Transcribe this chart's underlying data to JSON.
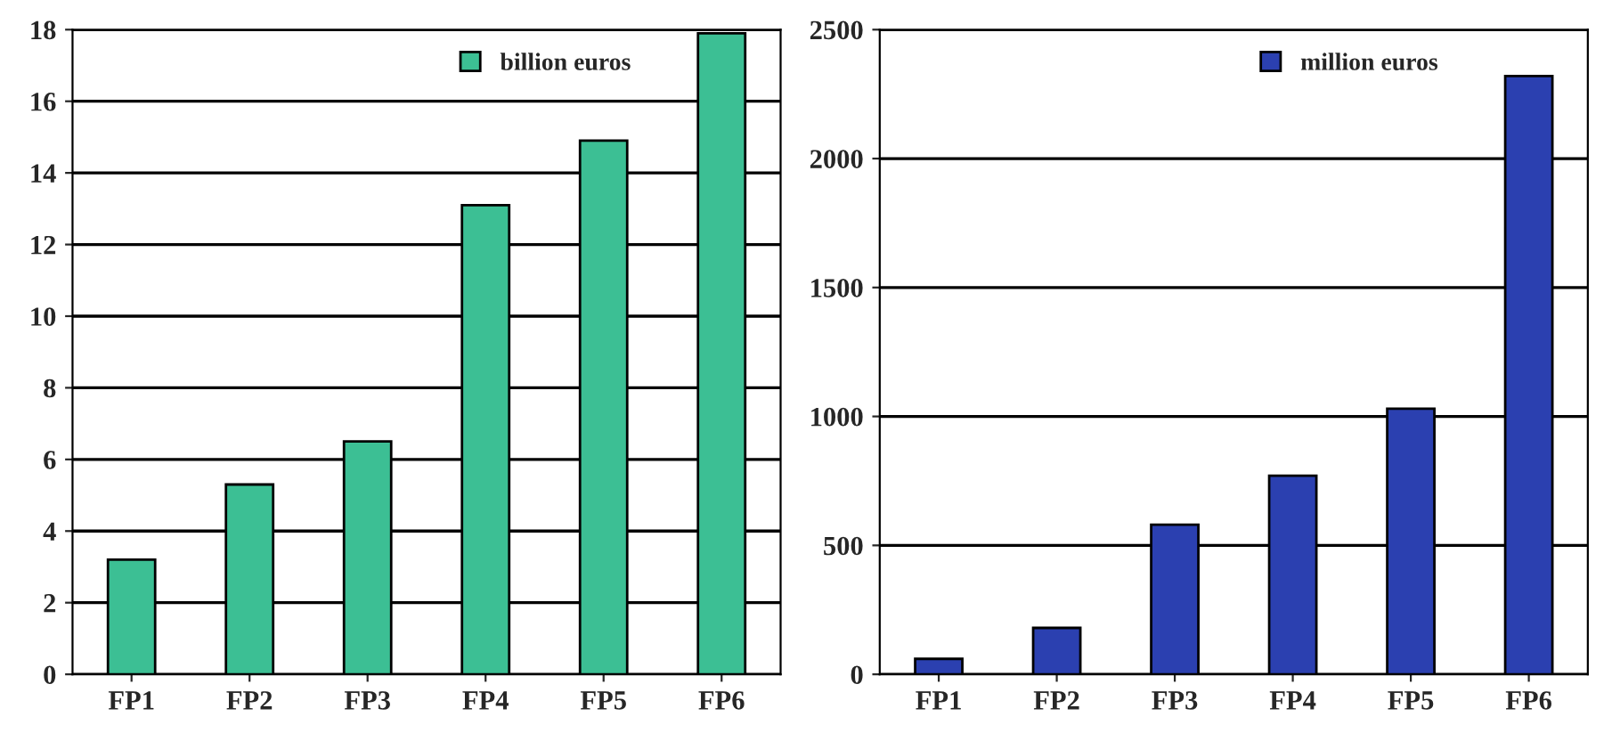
{
  "chart_data": [
    {
      "type": "bar",
      "categories": [
        "FP1",
        "FP2",
        "FP3",
        "FP4",
        "FP5",
        "FP6"
      ],
      "series": [
        {
          "name": "billion euros",
          "color": "#3cbf94",
          "values": [
            3.2,
            5.3,
            6.5,
            13.1,
            14.9,
            17.9
          ]
        }
      ],
      "ylim": [
        0,
        18
      ],
      "yticks": [
        0,
        2,
        4,
        6,
        8,
        10,
        12,
        14,
        16,
        18
      ],
      "grid": "y",
      "legend": "top right"
    },
    {
      "type": "bar",
      "categories": [
        "FP1",
        "FP2",
        "FP3",
        "FP4",
        "FP5",
        "FP6"
      ],
      "series": [
        {
          "name": "million euros",
          "color": "#2b40b0",
          "values": [
            60,
            180,
            580,
            770,
            1030,
            2320
          ]
        }
      ],
      "ylim": [
        0,
        2500
      ],
      "yticks": [
        0,
        500,
        1000,
        1500,
        2000,
        2500
      ],
      "grid": "y",
      "legend": "top right"
    }
  ]
}
